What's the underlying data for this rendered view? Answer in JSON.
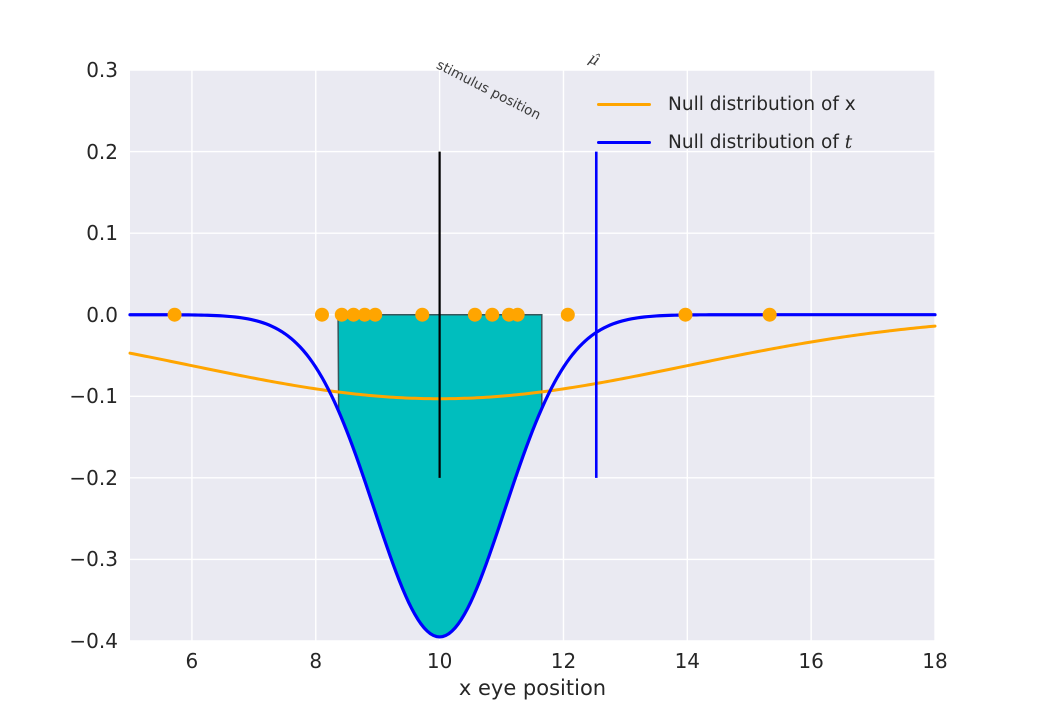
{
  "figure": {
    "background": "#ffffff",
    "axes_background": "#eaeaf2",
    "grid_color": "#ffffff",
    "text_color": "#262626",
    "annotation_color": "#3a3a3a"
  },
  "chart_data": {
    "type": "line",
    "title": "",
    "xlabel": "x eye position",
    "ylabel": "",
    "xlim": [
      5,
      18
    ],
    "ylim": [
      -0.4,
      0.3
    ],
    "grid": true,
    "legend_position": "upper right",
    "x_ticks": [
      {
        "value": 6,
        "label": "6"
      },
      {
        "value": 8,
        "label": "8"
      },
      {
        "value": 10,
        "label": "10"
      },
      {
        "value": 12,
        "label": "12"
      },
      {
        "value": 14,
        "label": "14"
      },
      {
        "value": 16,
        "label": "16"
      },
      {
        "value": 18,
        "label": "18"
      }
    ],
    "y_ticks": [
      {
        "value": 0.3,
        "label": "0.3"
      },
      {
        "value": 0.2,
        "label": "0.2"
      },
      {
        "value": 0.1,
        "label": "0.1"
      },
      {
        "value": 0.0,
        "label": "0.0"
      },
      {
        "value": -0.1,
        "label": "−0.1"
      },
      {
        "value": -0.2,
        "label": "−0.2"
      },
      {
        "value": -0.3,
        "label": "−0.3"
      },
      {
        "value": -0.4,
        "label": "−0.4"
      }
    ],
    "series": [
      {
        "name": "Null distribution of x",
        "shape": "inverted_gaussian",
        "amplitude": -0.103,
        "center": 10,
        "sigma": 4.0,
        "color": "#FFA500",
        "linewidth": 3
      },
      {
        "name": "Null distribution of t",
        "shape": "inverted_gaussian",
        "amplitude": -0.395,
        "center": 10,
        "sigma": 1.05,
        "color": "#0000FF",
        "linewidth": 3.2
      }
    ],
    "fill_region": {
      "description": "area between y=0 and blue curve (rejection region)",
      "x_start": 8.36,
      "x_end": 11.65,
      "from_y": 0,
      "follows_series": 1,
      "fill_color": "#00BEBE",
      "edge_color": "#37555a"
    },
    "scatter": {
      "name": "observed eye positions",
      "color": "#FFA500",
      "marker_radius": 7,
      "y": 0,
      "x": [
        5.72,
        8.1,
        8.42,
        8.61,
        8.79,
        8.96,
        9.72,
        10.57,
        10.85,
        11.12,
        11.26,
        12.07,
        13.97,
        15.33
      ]
    },
    "vlines": [
      {
        "x": 10,
        "y_min": -0.2,
        "y_max": 0.2,
        "color": "#000000",
        "linewidth": 2.2
      },
      {
        "x": 12.53,
        "y_min": -0.2,
        "y_max": 0.2,
        "color": "#0000FF",
        "linewidth": 2.6
      }
    ]
  },
  "legend": {
    "items": [
      {
        "label_prefix": "Null distribution of ",
        "symbol": "x",
        "symbol_italic": false,
        "color": "#FFA500"
      },
      {
        "label_prefix": "Null distribution of ",
        "symbol": "t",
        "symbol_italic": true,
        "color": "#0000FF"
      }
    ]
  },
  "annotations": {
    "stimulus": {
      "text": "stimulus position",
      "rotation_deg": 27
    },
    "mu_hat": {
      "text": "μ̂",
      "rotation_deg": 27
    }
  }
}
